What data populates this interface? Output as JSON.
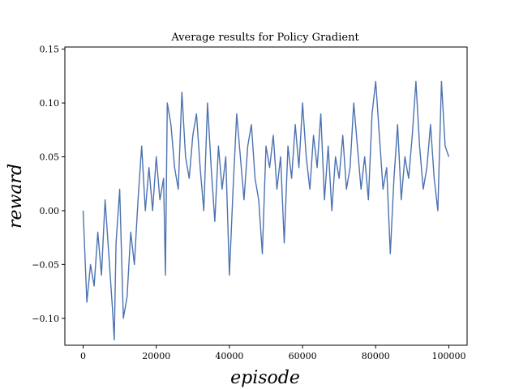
{
  "chart_data": {
    "type": "line",
    "title": "Average results for Policy Gradient",
    "xlabel": "episode",
    "ylabel": "reward",
    "xlim": [
      -5000,
      105000
    ],
    "ylim": [
      -0.125,
      0.152
    ],
    "grid": false,
    "color": "#4c72b0",
    "x_ticks": [
      0,
      20000,
      40000,
      60000,
      80000,
      100000
    ],
    "x_tick_labels": [
      "0",
      "20000",
      "40000",
      "60000",
      "80000",
      "100000"
    ],
    "y_ticks": [
      -0.1,
      -0.05,
      0.0,
      0.05,
      0.1,
      0.15
    ],
    "y_tick_labels": [
      "−0.10",
      "−0.05",
      "0.00",
      "0.05",
      "0.10",
      "0.15"
    ],
    "series": [
      {
        "x": [
          0,
          1000,
          2000,
          3000,
          4000,
          5000,
          6000,
          7000,
          8000,
          8500,
          9000,
          10000,
          11000,
          12000,
          13000,
          14000,
          15000,
          16000,
          17000,
          18000,
          19000,
          20000,
          21000,
          22000,
          22500,
          23000,
          24000,
          25000,
          26000,
          27000,
          28000,
          29000,
          30000,
          31000,
          32000,
          33000,
          34000,
          35000,
          36000,
          37000,
          38000,
          39000,
          40000,
          41000,
          42000,
          43000,
          44000,
          45000,
          46000,
          47000,
          48000,
          49000,
          50000,
          51000,
          52000,
          53000,
          54000,
          55000,
          56000,
          57000,
          58000,
          59000,
          60000,
          61000,
          62000,
          63000,
          64000,
          65000,
          66000,
          67000,
          68000,
          69000,
          70000,
          71000,
          72000,
          73000,
          74000,
          75000,
          76000,
          77000,
          78000,
          79000,
          80000,
          81000,
          82000,
          83000,
          84000,
          85000,
          86000,
          87000,
          88000,
          89000,
          90000,
          91000,
          92000,
          93000,
          94000,
          95000,
          96000,
          97000,
          98000,
          99000,
          100000
        ],
        "y": [
          0.0,
          -0.085,
          -0.05,
          -0.07,
          -0.02,
          -0.06,
          0.01,
          -0.04,
          -0.09,
          -0.12,
          -0.03,
          0.02,
          -0.1,
          -0.08,
          -0.02,
          -0.05,
          0.01,
          0.06,
          0.0,
          0.04,
          0.0,
          0.05,
          0.01,
          0.03,
          -0.06,
          0.1,
          0.08,
          0.04,
          0.02,
          0.11,
          0.05,
          0.03,
          0.07,
          0.09,
          0.04,
          0.0,
          0.1,
          0.04,
          -0.01,
          0.06,
          0.02,
          0.05,
          -0.06,
          0.02,
          0.09,
          0.05,
          0.01,
          0.06,
          0.08,
          0.03,
          0.01,
          -0.04,
          0.06,
          0.04,
          0.07,
          0.02,
          0.05,
          -0.03,
          0.06,
          0.03,
          0.08,
          0.04,
          0.1,
          0.05,
          0.02,
          0.07,
          0.04,
          0.09,
          0.01,
          0.06,
          0.0,
          0.05,
          0.03,
          0.07,
          0.02,
          0.04,
          0.1,
          0.06,
          0.02,
          0.05,
          0.01,
          0.09,
          0.12,
          0.07,
          0.02,
          0.04,
          -0.04,
          0.03,
          0.08,
          0.01,
          0.05,
          0.03,
          0.07,
          0.12,
          0.06,
          0.02,
          0.04,
          0.08,
          0.03,
          0.0,
          0.12,
          0.06,
          0.05
        ]
      }
    ]
  }
}
